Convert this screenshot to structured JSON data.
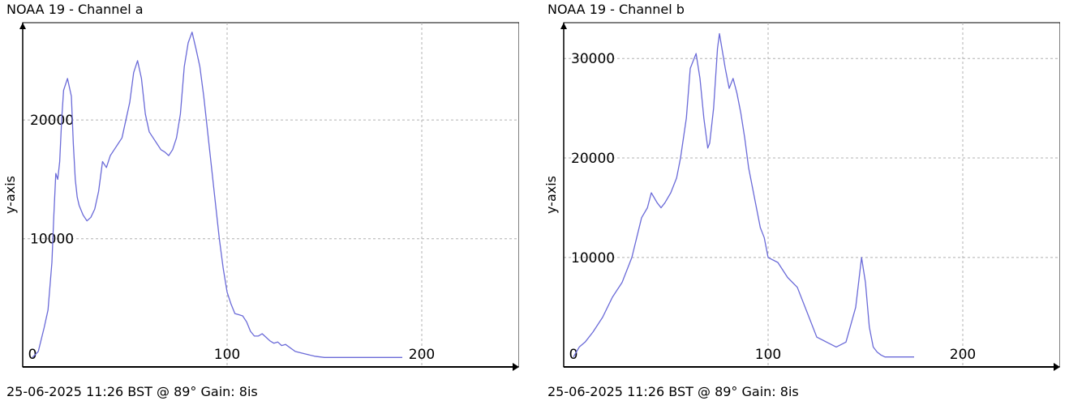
{
  "chart_data": [
    {
      "type": "line",
      "title": "NOAA 19 - Channel a",
      "footer": "25-06-2025 11:26 BST @ 89° Gain: 8is",
      "xlabel": "",
      "ylabel": "y-axis",
      "xlim": [
        -5,
        250
      ],
      "ylim": [
        -800,
        28200
      ],
      "xticks": [
        0,
        100,
        200
      ],
      "yticks": [
        10000,
        20000
      ],
      "xtick_labels": [
        "0",
        "100",
        "200"
      ],
      "ytick_labels": [
        "10000",
        "20000"
      ],
      "grid": true,
      "line_color": "#6a6ad8",
      "series": [
        {
          "x": [
            0,
            3,
            6,
            8,
            10,
            11,
            12,
            13,
            14,
            15,
            16,
            18,
            20,
            21,
            22,
            23,
            24,
            26,
            28,
            30,
            32,
            34,
            36,
            38,
            40,
            42,
            44,
            46,
            48,
            50,
            52,
            54,
            56,
            58,
            60,
            62,
            64,
            66,
            68,
            70,
            72,
            74,
            76,
            78,
            80,
            82,
            84,
            86,
            88,
            90,
            92,
            94,
            96,
            98,
            100,
            102,
            104,
            106,
            108,
            110,
            112,
            114,
            116,
            118,
            120,
            122,
            124,
            126,
            128,
            130,
            135,
            140,
            145,
            150,
            155,
            160,
            165,
            170,
            175,
            180,
            185,
            190
          ],
          "y": [
            0,
            500,
            2500,
            4000,
            8000,
            12000,
            15500,
            15000,
            16500,
            20000,
            22500,
            23500,
            22000,
            18000,
            15000,
            13500,
            12800,
            12000,
            11500,
            11800,
            12500,
            14000,
            16500,
            16000,
            17000,
            17500,
            18000,
            18500,
            20000,
            21500,
            24000,
            25000,
            23500,
            20500,
            19000,
            18500,
            18000,
            17500,
            17300,
            17000,
            17500,
            18500,
            20500,
            24500,
            26500,
            27400,
            26000,
            24500,
            22000,
            19000,
            16000,
            13000,
            10000,
            7500,
            5500,
            4500,
            3700,
            3600,
            3500,
            3000,
            2200,
            1800,
            1800,
            2000,
            1700,
            1400,
            1200,
            1300,
            1000,
            1100,
            500,
            300,
            100,
            0,
            0,
            0,
            0,
            0,
            0,
            0,
            0,
            0
          ]
        }
      ]
    },
    {
      "type": "line",
      "title": "NOAA 19 - Channel b",
      "footer": "25-06-2025 11:26 BST @ 89° Gain: 8is",
      "xlabel": "",
      "ylabel": "y-axis",
      "xlim": [
        -5,
        250
      ],
      "ylim": [
        -1000,
        33600
      ],
      "xticks": [
        0,
        100,
        200
      ],
      "yticks": [
        10000,
        20000,
        30000
      ],
      "xtick_labels": [
        "0",
        "100",
        "200"
      ],
      "ytick_labels": [
        "10000",
        "20000",
        "30000"
      ],
      "grid": true,
      "line_color": "#6a6ad8",
      "series": [
        {
          "x": [
            0,
            3,
            6,
            10,
            15,
            20,
            25,
            30,
            35,
            38,
            40,
            43,
            45,
            47,
            50,
            53,
            55,
            58,
            60,
            63,
            65,
            67,
            69,
            70,
            72,
            74,
            75,
            78,
            80,
            82,
            84,
            86,
            88,
            90,
            92,
            94,
            96,
            98,
            100,
            105,
            110,
            115,
            120,
            125,
            130,
            135,
            140,
            145,
            148,
            150,
            152,
            154,
            156,
            158,
            160,
            162,
            164,
            166,
            168,
            170,
            175
          ],
          "y": [
            0,
            1000,
            1500,
            2500,
            4000,
            6000,
            7500,
            10000,
            14000,
            15000,
            16500,
            15500,
            15000,
            15500,
            16500,
            18000,
            20000,
            24000,
            29000,
            30500,
            28000,
            24000,
            21000,
            21500,
            25000,
            31000,
            32500,
            29000,
            27000,
            28000,
            26500,
            24500,
            22000,
            19000,
            17000,
            15000,
            13000,
            12000,
            10000,
            9500,
            8000,
            7000,
            4500,
            2000,
            1500,
            1000,
            1500,
            5000,
            10000,
            7500,
            3000,
            1000,
            500,
            200,
            0,
            0,
            0,
            0,
            0,
            0,
            0
          ]
        }
      ]
    }
  ]
}
